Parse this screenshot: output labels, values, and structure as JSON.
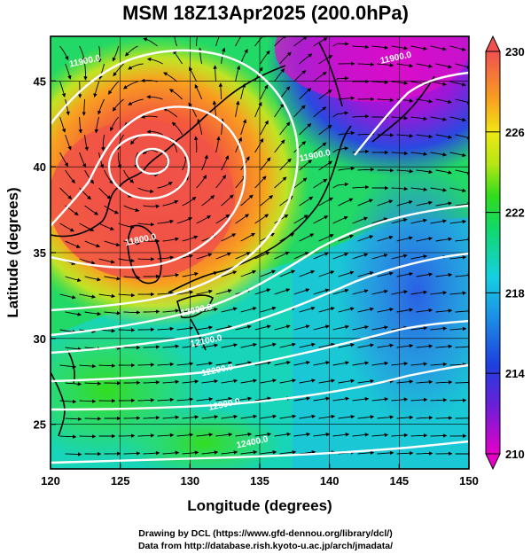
{
  "title": "MSM 18Z13Apr2025 (200.0hPa)",
  "credits": {
    "line1": "Drawing by DCL (https://www.gfd-dennou.org/library/dcl/)",
    "line2": "Data from http://database.rish.kyoto-u.ac.jp/arch/jmadata/"
  },
  "axes": {
    "xlabel": "Longitude (degrees)",
    "ylabel": "Latitude  (degrees)",
    "xlim": [
      120,
      150
    ],
    "ylim": [
      22.4,
      47.6
    ],
    "xticks": [
      120,
      125,
      130,
      135,
      140,
      145,
      150
    ],
    "yticks": [
      25,
      30,
      35,
      40,
      45
    ]
  },
  "colorbar": {
    "min": 210,
    "max": 230,
    "ticks": [
      210,
      214,
      218,
      222,
      226,
      230
    ]
  },
  "chart_data": {
    "type": "heatmap",
    "variable": "temperature (shaded), geopotential height contours, wind streamlines",
    "contour_labels": [
      {
        "text": "11900.0",
        "lon": 144.8,
        "lat": 46.2
      },
      {
        "text": "11900.0",
        "lon": 122.5,
        "lat": 46.0
      },
      {
        "text": "11900.0",
        "lon": 139.0,
        "lat": 40.5
      },
      {
        "text": "11800.0",
        "lon": 126.5,
        "lat": 35.6
      },
      {
        "text": "12000.0",
        "lon": 130.5,
        "lat": 31.5
      },
      {
        "text": "12100.0",
        "lon": 131.2,
        "lat": 29.7
      },
      {
        "text": "12200.0",
        "lon": 132.0,
        "lat": 28.0
      },
      {
        "text": "12300.0",
        "lon": 132.5,
        "lat": 26.0
      },
      {
        "text": "12400.0",
        "lon": 134.5,
        "lat": 23.8
      }
    ]
  }
}
